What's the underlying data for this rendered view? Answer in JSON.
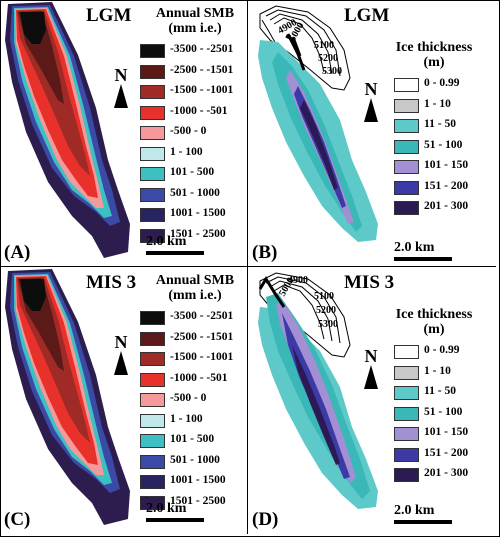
{
  "colors": {
    "smb": [
      "#0d0d0d",
      "#5b1a17",
      "#a02a25",
      "#e8312a",
      "#f49a9a",
      "#bfe8ea",
      "#3ebfc2",
      "#3a4aa6",
      "#282361",
      "#2d1d4f"
    ],
    "thick": [
      "#ffffff",
      "#c8c8c8",
      "#5ec9c9",
      "#39b8b7",
      "#a38fd3",
      "#3c3aa6",
      "#2c1a55"
    ]
  },
  "north_label": "N",
  "scale_label": "2.0 km",
  "smb_legend": {
    "title_line1": "Annual SMB",
    "title_line2": "(mm i.e.)",
    "items": [
      "-3500 - -2501",
      "-2500 - -1501",
      "-1500 - -1001",
      "-1000 - -501",
      "-500 - 0",
      "1 - 100",
      "101 - 500",
      "501 - 1000",
      "1001 - 1500",
      "1501 - 2500"
    ]
  },
  "thickness_legend": {
    "title_line1": "Ice thickness",
    "title_line2": "(m)",
    "items": [
      "0 - 0.99",
      "1 - 10",
      "11 - 50",
      "51 - 100",
      "101 - 150",
      "151 - 200",
      "201 - 300"
    ]
  },
  "contours": [
    "4900",
    "5000",
    "5100",
    "5200",
    "5300"
  ],
  "panels": {
    "a": {
      "title": "LGM",
      "label": "(A)"
    },
    "b": {
      "title": "LGM",
      "label": "(B)"
    },
    "c": {
      "title": "MIS 3",
      "label": "(C)"
    },
    "d": {
      "title": "MIS 3",
      "label": "(D)"
    }
  }
}
